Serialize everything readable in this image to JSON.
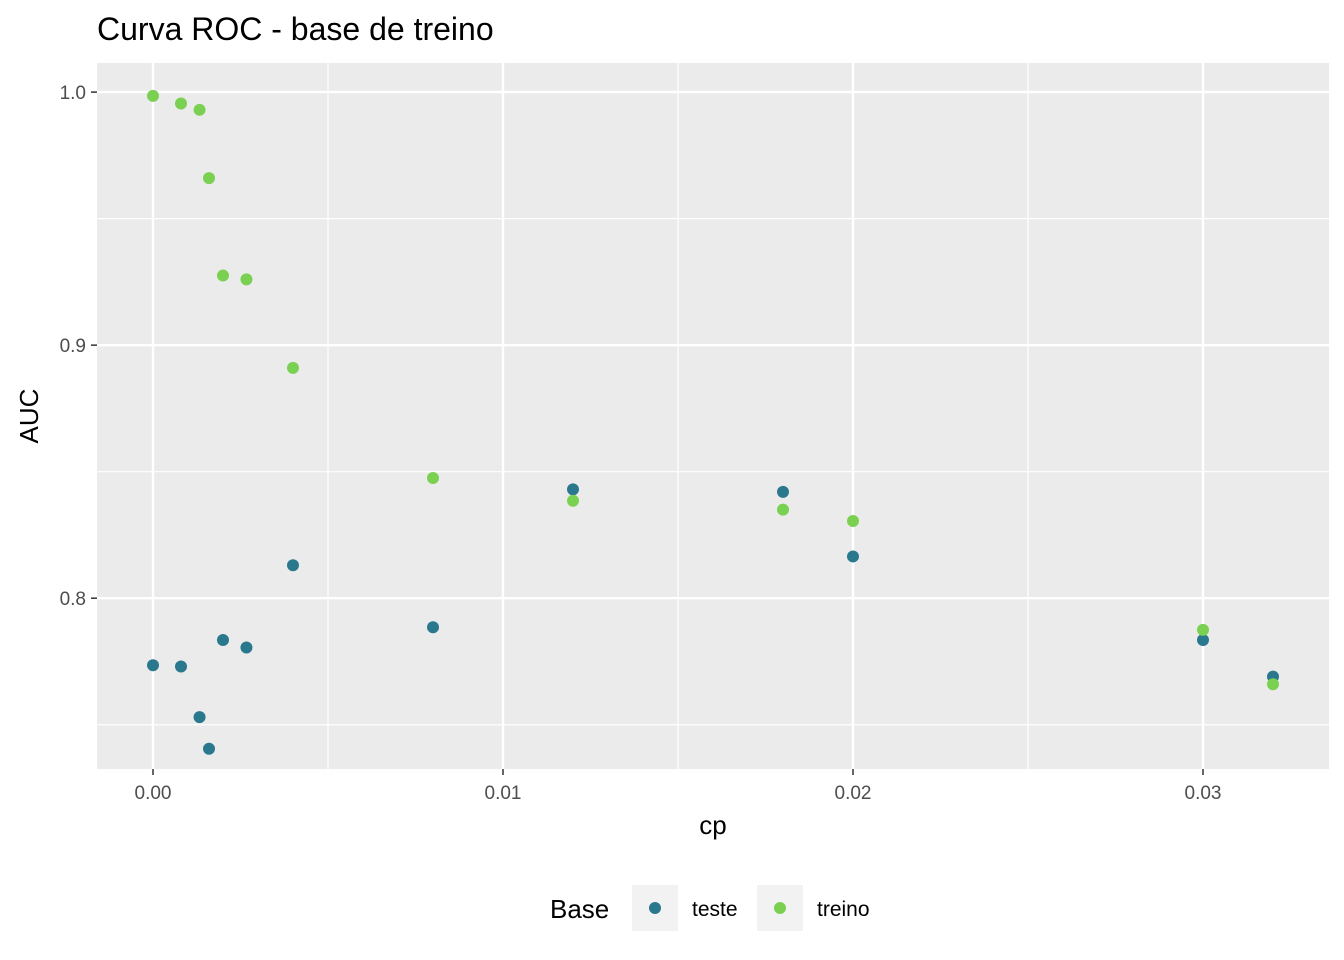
{
  "chart_data": {
    "type": "scatter",
    "title": "Curva ROC - base de treino",
    "xlabel": "cp",
    "ylabel": "AUC",
    "xlim": [
      -0.0016,
      0.0336
    ],
    "ylim": [
      0.7325,
      1.0115
    ],
    "x_ticks": [
      0.0,
      0.01,
      0.02,
      0.03
    ],
    "x_tick_labels": [
      "0.00",
      "0.01",
      "0.02",
      "0.03"
    ],
    "x_minor_ticks": [
      0.005,
      0.015,
      0.025
    ],
    "y_ticks": [
      0.8,
      0.9,
      1.0
    ],
    "y_tick_labels": [
      "0.8",
      "0.9",
      "1.0"
    ],
    "y_minor_ticks": [
      0.75,
      0.85,
      0.95
    ],
    "grid": true,
    "legend_position": "bottom",
    "legend_title": "Base",
    "series": [
      {
        "name": "teste",
        "color": "#2a788e",
        "x": [
          0.0,
          0.0008,
          0.00133,
          0.0016,
          0.002,
          0.00267,
          0.004,
          0.008,
          0.012,
          0.018,
          0.02,
          0.03,
          0.032
        ],
        "y": [
          0.7735,
          0.773,
          0.753,
          0.7405,
          0.7835,
          0.7805,
          0.813,
          0.7885,
          0.843,
          0.842,
          0.8165,
          0.7835,
          0.769
        ]
      },
      {
        "name": "treino",
        "color": "#7ad151",
        "x": [
          0.0,
          0.0008,
          0.00133,
          0.0016,
          0.002,
          0.00267,
          0.004,
          0.008,
          0.012,
          0.018,
          0.02,
          0.03,
          0.032
        ],
        "y": [
          0.9985,
          0.9955,
          0.993,
          0.966,
          0.9275,
          0.926,
          0.891,
          0.8475,
          0.8385,
          0.835,
          0.8305,
          0.7875,
          0.766
        ]
      }
    ]
  }
}
